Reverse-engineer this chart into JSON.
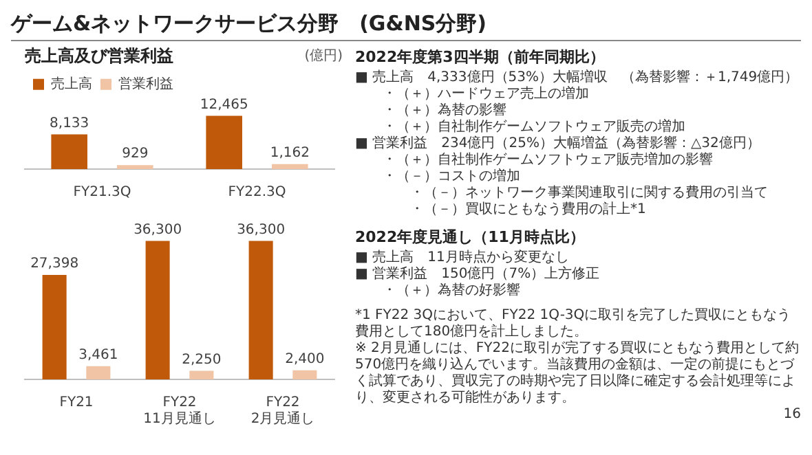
{
  "chart_data": [
    {
      "type": "bar",
      "title": "ゲーム&ネットワークサービス分野　(G&NS分野)",
      "subtitle": "売上高及び営業利益",
      "ylabel": "(億円)",
      "categories": [
        "FY21.3Q",
        "FY22.3Q"
      ],
      "series": [
        {
          "name": "売上高",
          "color": "#c0590a",
          "values": [
            8133,
            12465
          ],
          "value_labels": [
            "8,133",
            "12,465"
          ]
        },
        {
          "name": "営業利益",
          "color": "#f0c4a4",
          "values": [
            929,
            1162
          ],
          "value_labels": [
            "929",
            "1,162"
          ]
        }
      ],
      "legend": "top left",
      "tick_labels": "x"
    },
    {
      "type": "bar",
      "categories": [
        "FY21",
        "FY22 11月見通し",
        "FY22 2月見通し"
      ],
      "series": [
        {
          "color": "#c0590a",
          "values": [
            27398,
            36300,
            36300
          ],
          "value_labels": [
            "27,398",
            "36,300",
            "36,300"
          ]
        },
        {
          "color": "#f0c4a4",
          "values": [
            3461,
            2250,
            2400
          ],
          "value_labels": [
            "3,461",
            "2,250",
            "2,400"
          ]
        }
      ],
      "tick_labels": "x"
    },
    {
      "type": "other",
      "title": "2022年度第3四半期（前年同期比）",
      "annotations": [
        "■ 売上高　4,333億円（53%）大幅増収　（為替影響：＋1,749億円）",
        "　　・（＋）ハードウェア売上の増加",
        "　　・（＋）為替の影響",
        "　　・（＋）自社制作ゲームソフトウェア販売の増加",
        "■ 営業利益　234億円（25%）大幅増益（為替影響：△32億円）",
        "　　・（＋）自社制作ゲームソフトウェア販売増加の影響",
        "　　・（－）コストの増加",
        "　　　　・（－）ネットワーク事業関連取引に関する費用の引当て",
        "　　　　・（－）買収にともなう費用の計上*1"
      ]
    },
    {
      "type": "other",
      "title": "2022年度見通し（11月時点比）",
      "annotations": [
        "■ 売上高　11月時点から変更なし",
        "■ 営業利益　150億円（7%）上方修正",
        "　　・（＋）為替の好影響"
      ]
    },
    {
      "type": "other",
      "annotations": [
        "*1 FY22 3Qにおいて、FY22 1Q-3Qに取引を完了した買収にともなう費用として180億円を計上しました。",
        "※ 2月見通しには、FY22に取引が完了する買収にともなう費用として約570億円を織り込んでいます。当該費用の金額は、一定の前提にもとづく試算であり、買収完了の時期や完了日以降に確定する会計処理等により、変更される可能性があります。",
        "16"
      ]
    }
  ]
}
